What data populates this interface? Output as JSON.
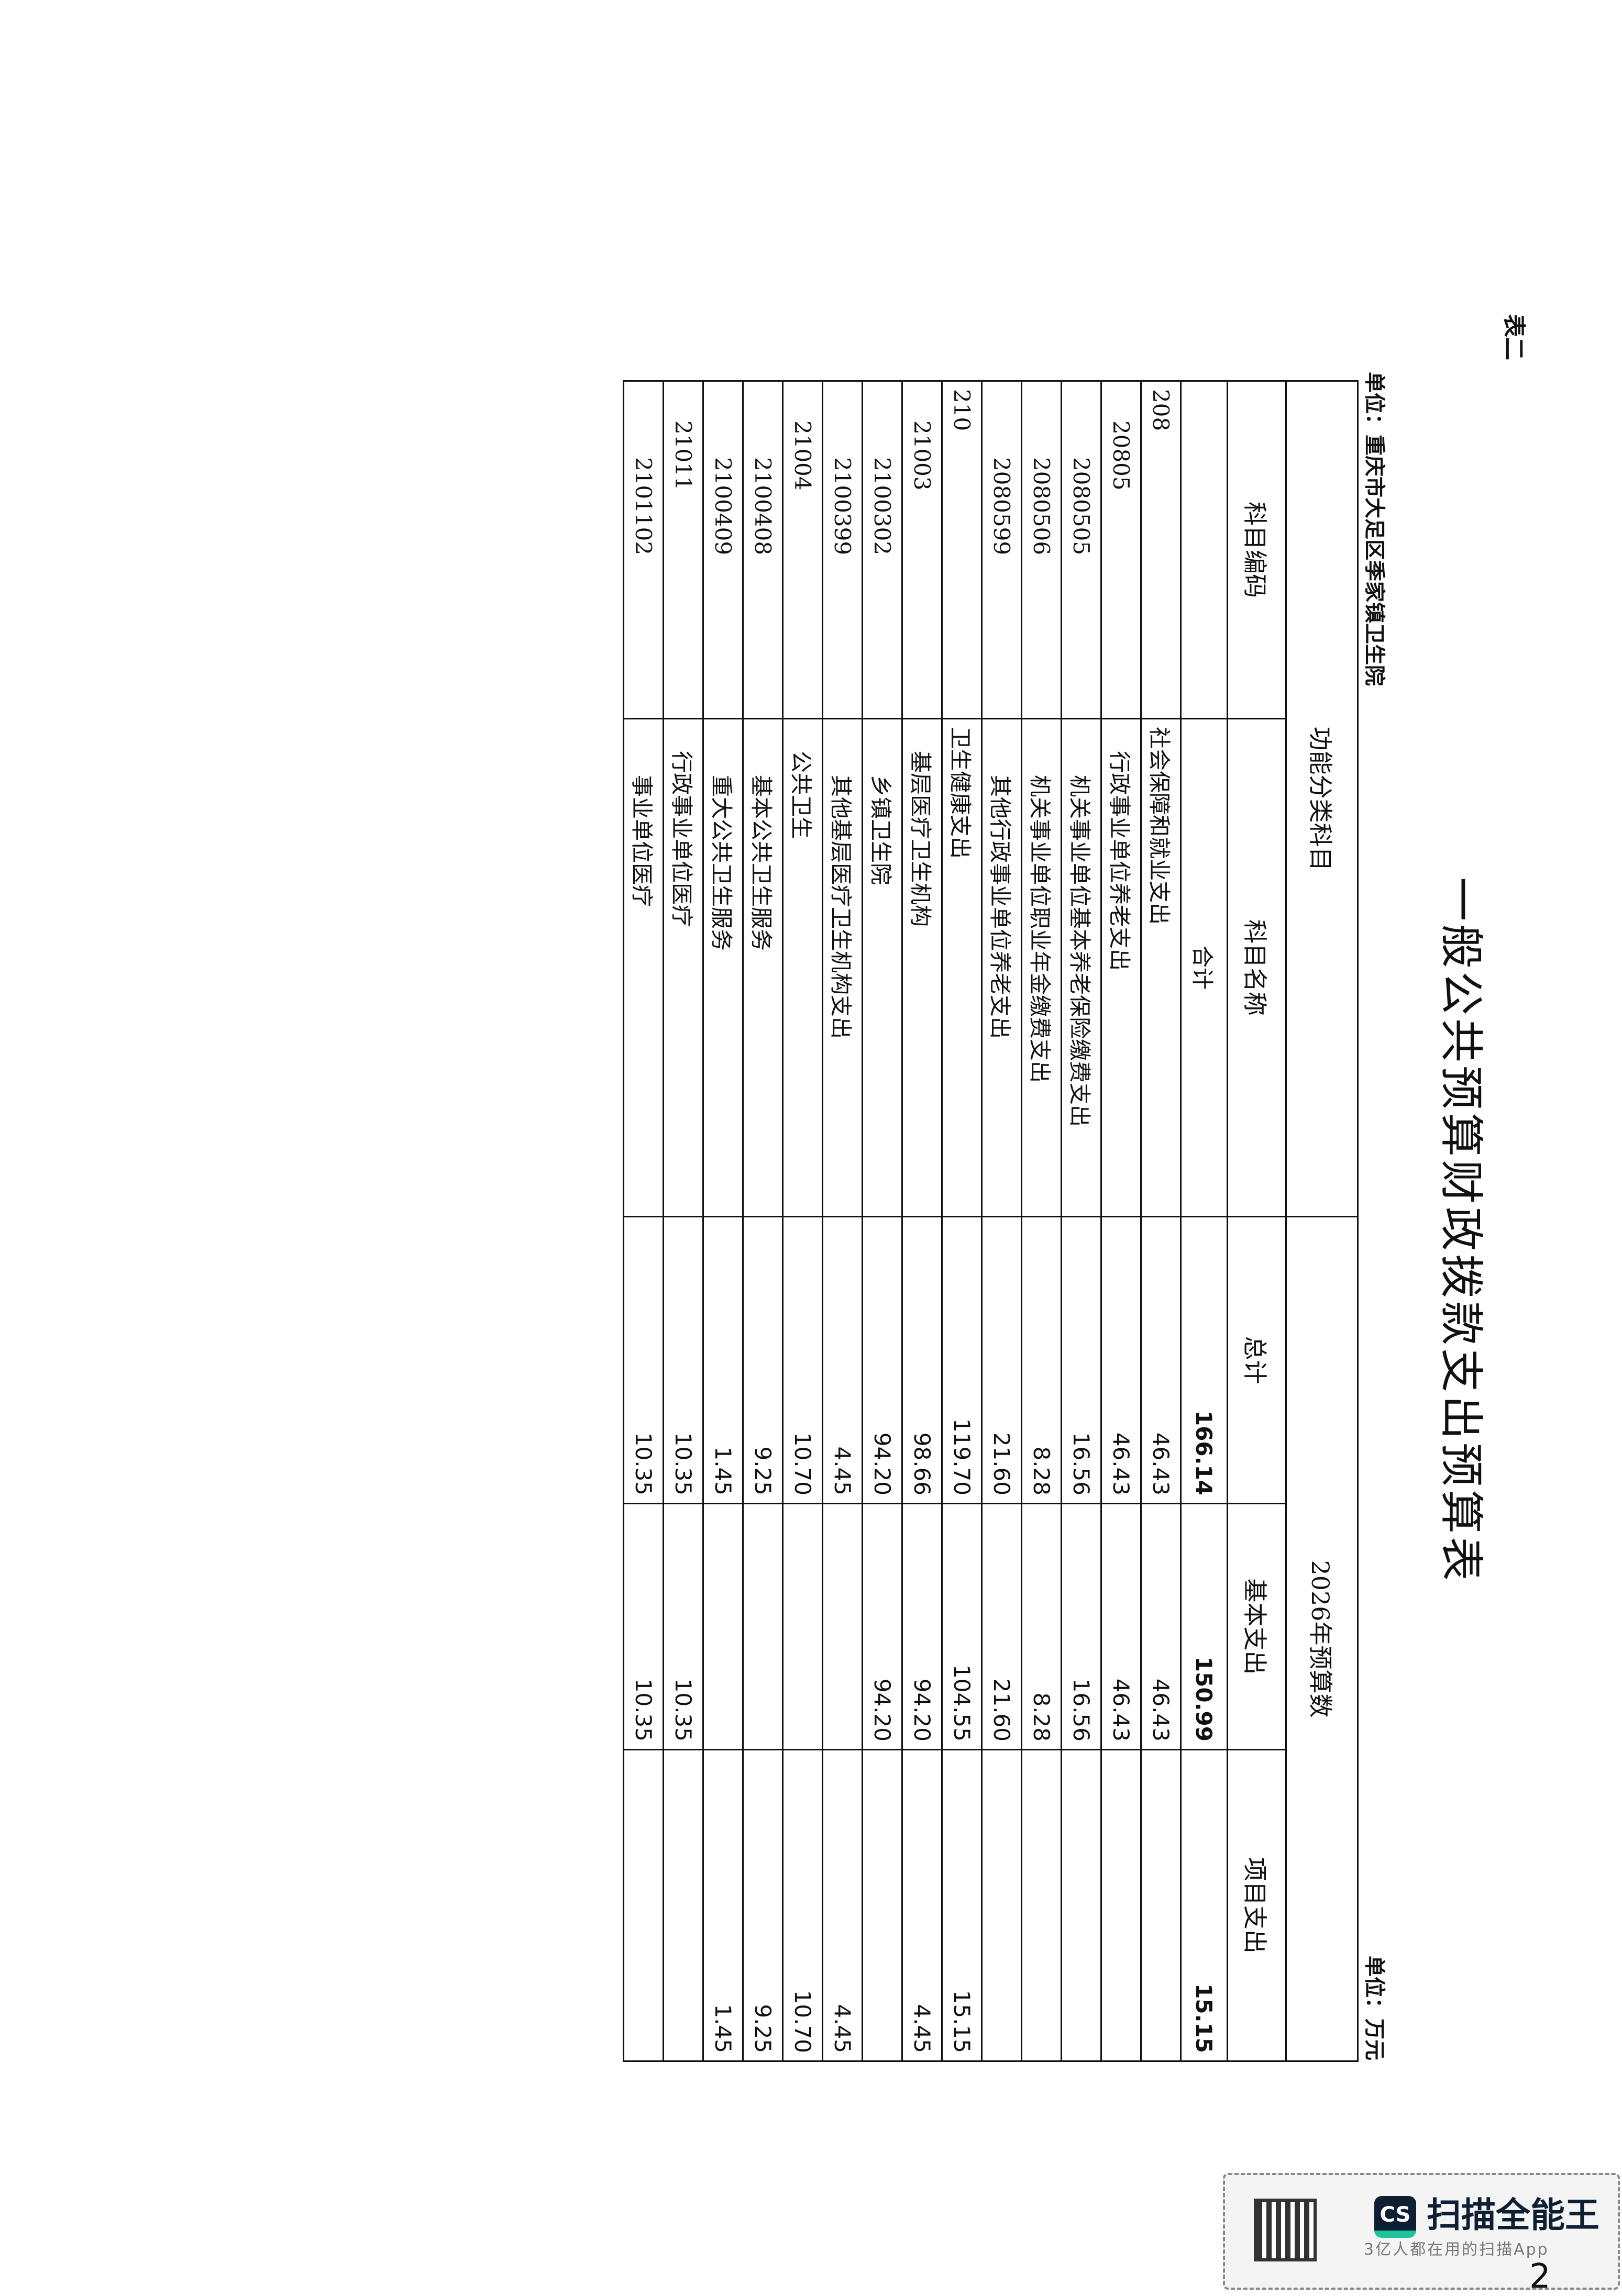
{
  "document": {
    "label": "表二",
    "title": "一般公共预算财政拨款支出预算表",
    "unit_org": "单位：重庆市大足区季家镇卫生院",
    "unit_money": "单位：万元"
  },
  "table": {
    "group_header": "功能分类科目",
    "year_header": "2026年预算数",
    "columns": [
      "科目编码",
      "科目名称",
      "总计",
      "基本支出",
      "项目支出"
    ],
    "total_row": {
      "label": "合计",
      "total": "166.14",
      "basic": "150.99",
      "project": "15.15"
    },
    "rows": [
      {
        "level": 1,
        "code": "208",
        "name": "社会保障和就业支出",
        "total": "46.43",
        "basic": "46.43",
        "project": ""
      },
      {
        "level": 2,
        "code": "20805",
        "name": "行政事业单位养老支出",
        "total": "46.43",
        "basic": "46.43",
        "project": ""
      },
      {
        "level": 3,
        "code": "2080505",
        "name": "机关事业单位基本养老保险缴费支出",
        "total": "16.56",
        "basic": "16.56",
        "project": ""
      },
      {
        "level": 3,
        "code": "2080506",
        "name": "机关事业单位职业年金缴费支出",
        "total": "8.28",
        "basic": "8.28",
        "project": ""
      },
      {
        "level": 3,
        "code": "2080599",
        "name": "其他行政事业单位养老支出",
        "total": "21.60",
        "basic": "21.60",
        "project": ""
      },
      {
        "level": 1,
        "code": "210",
        "name": "卫生健康支出",
        "total": "119.70",
        "basic": "104.55",
        "project": "15.15"
      },
      {
        "level": 2,
        "code": "21003",
        "name": "基层医疗卫生机构",
        "total": "98.66",
        "basic": "94.20",
        "project": "4.45"
      },
      {
        "level": 3,
        "code": "2100302",
        "name": "乡镇卫生院",
        "total": "94.20",
        "basic": "94.20",
        "project": ""
      },
      {
        "level": 3,
        "code": "2100399",
        "name": "其他基层医疗卫生机构支出",
        "total": "4.45",
        "basic": "",
        "project": "4.45"
      },
      {
        "level": 2,
        "code": "21004",
        "name": "公共卫生",
        "total": "10.70",
        "basic": "",
        "project": "10.70"
      },
      {
        "level": 3,
        "code": "2100408",
        "name": "基本公共卫生服务",
        "total": "9.25",
        "basic": "",
        "project": "9.25"
      },
      {
        "level": 3,
        "code": "2100409",
        "name": "重大公共卫生服务",
        "total": "1.45",
        "basic": "",
        "project": "1.45"
      },
      {
        "level": 2,
        "code": "21011",
        "name": "行政事业单位医疗",
        "total": "10.35",
        "basic": "10.35",
        "project": ""
      },
      {
        "level": 3,
        "code": "2101102",
        "name": "事业单位医疗",
        "total": "10.35",
        "basic": "10.35",
        "project": ""
      }
    ]
  },
  "watermark": {
    "logo_text": "CS",
    "brand": "扫描全能王",
    "slogan": "3亿人都在用的扫描App",
    "brand_colors": {
      "dark": "#0f1f33",
      "accent": "#1fc49a"
    }
  },
  "page_number": "2"
}
